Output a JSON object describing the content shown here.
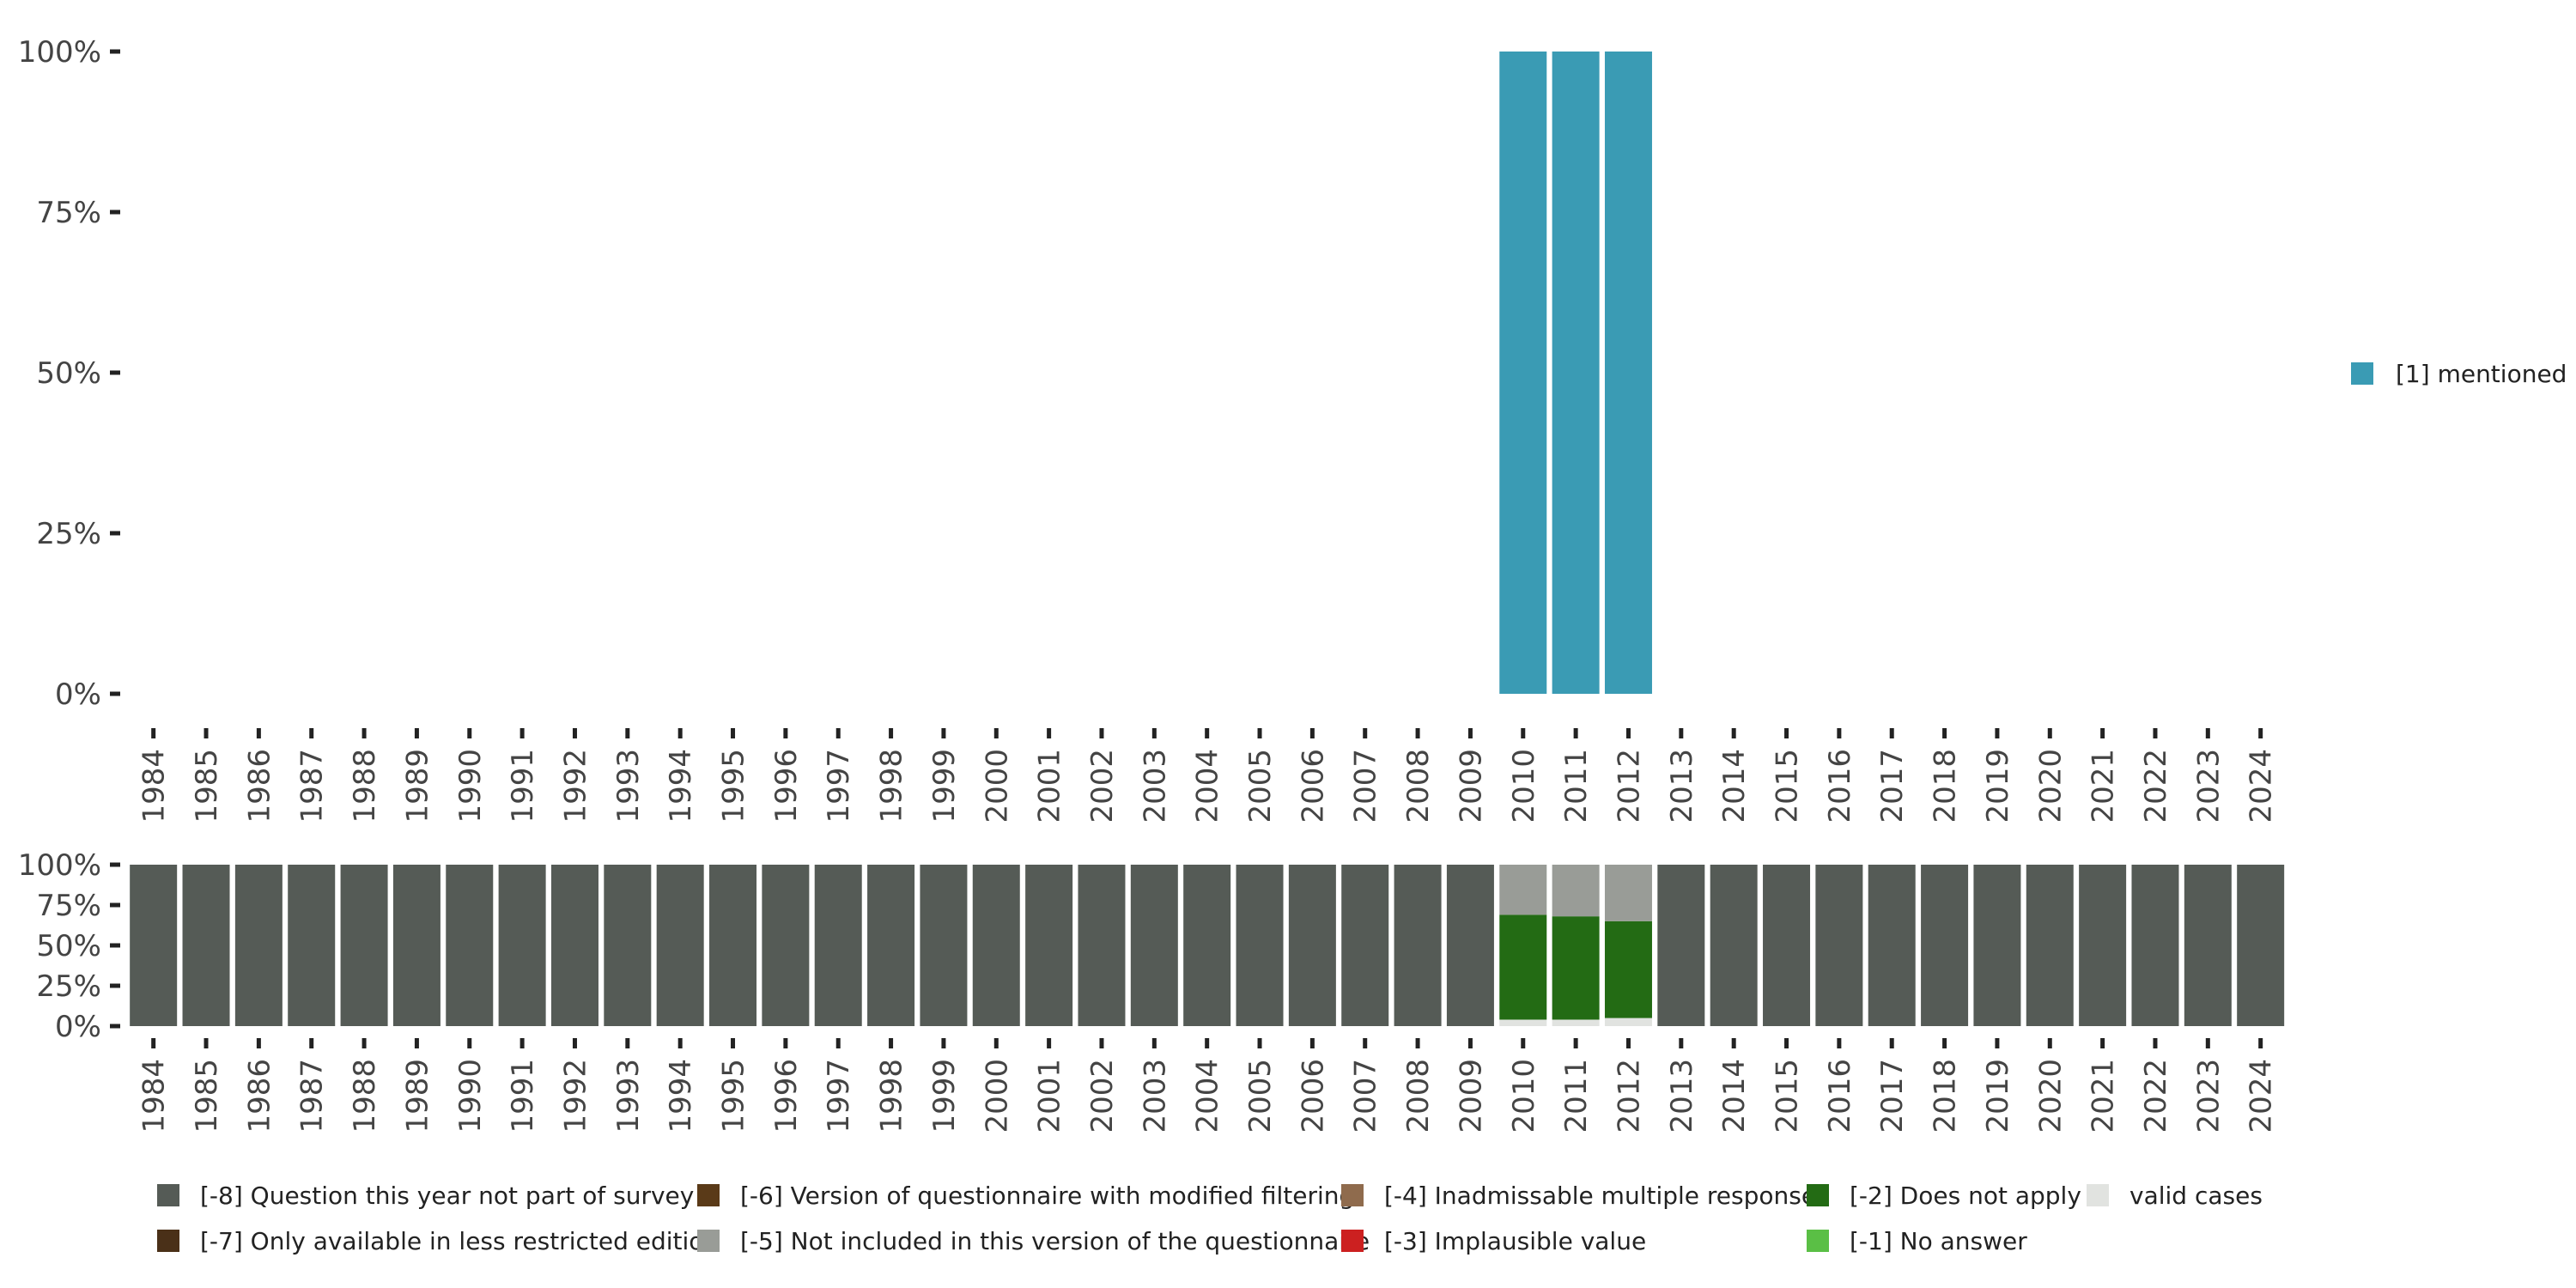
{
  "chart_data": [
    {
      "type": "bar",
      "name": "valid-responses",
      "categories": [
        "1984",
        "1985",
        "1986",
        "1987",
        "1988",
        "1989",
        "1990",
        "1991",
        "1992",
        "1993",
        "1994",
        "1995",
        "1996",
        "1997",
        "1998",
        "1999",
        "2000",
        "2001",
        "2002",
        "2003",
        "2004",
        "2005",
        "2006",
        "2007",
        "2008",
        "2009",
        "2010",
        "2011",
        "2012",
        "2013",
        "2014",
        "2015",
        "2016",
        "2017",
        "2018",
        "2019",
        "2020",
        "2021",
        "2022",
        "2023",
        "2024"
      ],
      "series": [
        {
          "name": "[1] mentioned",
          "color": "#3a9bb4",
          "values": {
            "2010": 100,
            "2011": 100,
            "2012": 100
          }
        }
      ],
      "y_ticks": [
        "0%",
        "25%",
        "50%",
        "75%",
        "100%"
      ],
      "ylim": [
        0,
        100
      ],
      "legend": {
        "placement": "right",
        "entries": [
          "[1] mentioned"
        ]
      }
    },
    {
      "type": "bar",
      "stacked": true,
      "name": "missing-codes",
      "categories": [
        "1984",
        "1985",
        "1986",
        "1987",
        "1988",
        "1989",
        "1990",
        "1991",
        "1992",
        "1993",
        "1994",
        "1995",
        "1996",
        "1997",
        "1998",
        "1999",
        "2000",
        "2001",
        "2002",
        "2003",
        "2004",
        "2005",
        "2006",
        "2007",
        "2008",
        "2009",
        "2010",
        "2011",
        "2012",
        "2013",
        "2014",
        "2015",
        "2016",
        "2017",
        "2018",
        "2019",
        "2020",
        "2021",
        "2022",
        "2023",
        "2024"
      ],
      "default_stack": [
        {
          "code": "-8",
          "value": 100
        }
      ],
      "stacks": {
        "2010": [
          {
            "code": "valid",
            "value": 4
          },
          {
            "code": "-2",
            "value": 65
          },
          {
            "code": "-5",
            "value": 31
          }
        ],
        "2011": [
          {
            "code": "valid",
            "value": 4
          },
          {
            "code": "-2",
            "value": 64
          },
          {
            "code": "-5",
            "value": 32
          }
        ],
        "2012": [
          {
            "code": "valid",
            "value": 5
          },
          {
            "code": "-2",
            "value": 60
          },
          {
            "code": "-5",
            "value": 35
          }
        ]
      },
      "y_ticks": [
        "0%",
        "25%",
        "50%",
        "75%",
        "100%"
      ],
      "ylim": [
        0,
        100
      ],
      "legend": {
        "placement": "bottom",
        "entries": [
          {
            "code": "-8",
            "label": "[-8] Question this year not part of survey",
            "color": "#555b56"
          },
          {
            "code": "-7",
            "label": "[-7] Only available in less restricted edition",
            "color": "#4a3018"
          },
          {
            "code": "-6",
            "label": "[-6] Version of questionnaire with modified filtering",
            "color": "#5a3a18"
          },
          {
            "code": "-5",
            "label": "[-5] Not included in this version of the questionnaire",
            "color": "#999c97"
          },
          {
            "code": "-4",
            "label": "[-4] Inadmissable multiple response",
            "color": "#8f6b4d"
          },
          {
            "code": "-3",
            "label": "[-3] Implausible value",
            "color": "#cc2020"
          },
          {
            "code": "-2",
            "label": "[-2] Does not apply",
            "color": "#236b14"
          },
          {
            "code": "-1",
            "label": "[-1] No answer",
            "color": "#5abf45"
          },
          {
            "code": "valid",
            "label": "valid cases",
            "color": "#e1e3e0"
          }
        ]
      }
    }
  ]
}
